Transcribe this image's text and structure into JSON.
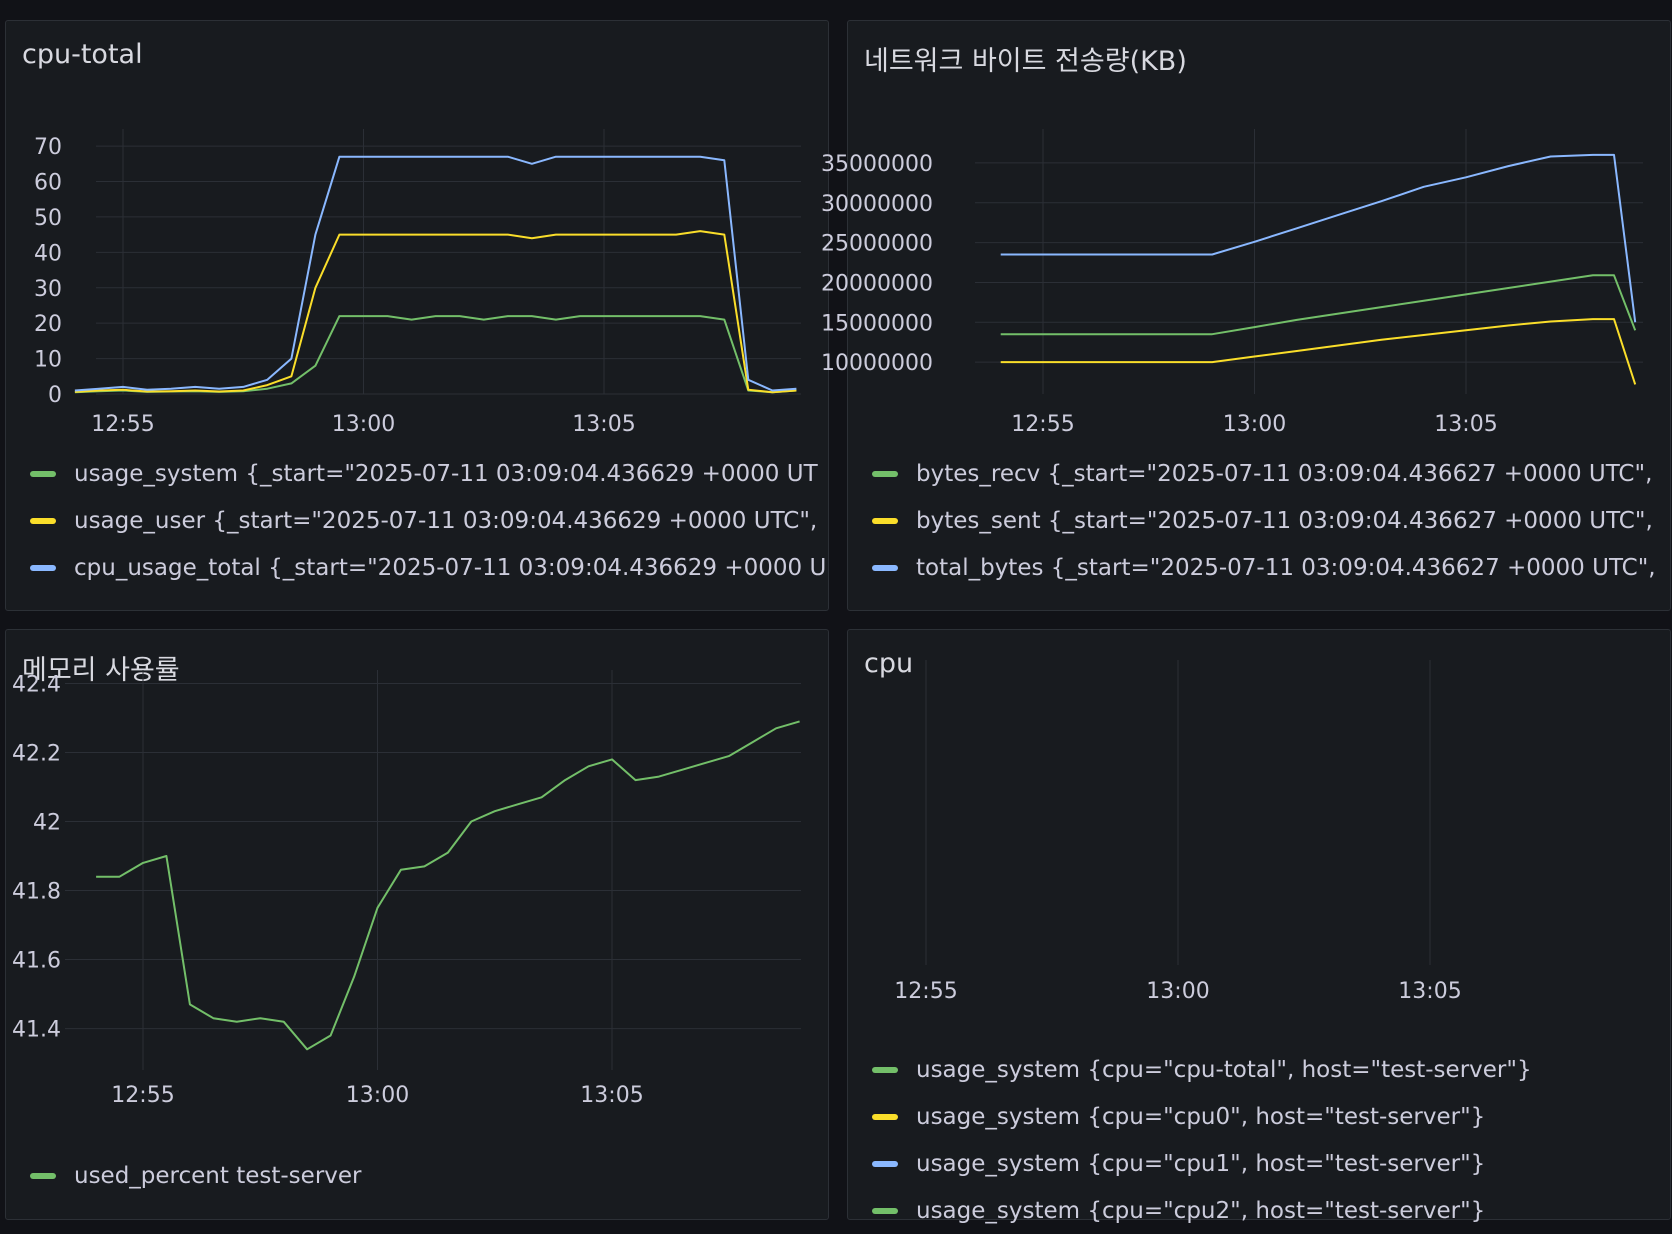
{
  "colors": {
    "green": "#73bf69",
    "yellow": "#fade2a",
    "blue": "#8ab8ff",
    "grid": "#2b2f36",
    "axis_text": "#ccccdc"
  },
  "panels": {
    "cpu_total": {
      "title": "cpu-total",
      "legend": [
        {
          "text": "usage_system {_start=\"2025-07-11 03:09:04.436629 +0000 UT",
          "color": "#73bf69"
        },
        {
          "text": "usage_user {_start=\"2025-07-11 03:09:04.436629 +0000 UTC\",",
          "color": "#fade2a"
        },
        {
          "text": "cpu_usage_total {_start=\"2025-07-11 03:09:04.436629 +0000 U",
          "color": "#8ab8ff"
        }
      ]
    },
    "network": {
      "title": "네트워크 바이트 전송량(KB)",
      "legend": [
        {
          "text": "bytes_recv {_start=\"2025-07-11 03:09:04.436627 +0000 UTC\",",
          "color": "#73bf69"
        },
        {
          "text": "bytes_sent {_start=\"2025-07-11 03:09:04.436627 +0000 UTC\",",
          "color": "#fade2a"
        },
        {
          "text": "total_bytes {_start=\"2025-07-11 03:09:04.436627 +0000 UTC\",",
          "color": "#8ab8ff"
        }
      ]
    },
    "memory": {
      "title": "메모리 사용률",
      "legend": [
        {
          "text": "used_percent test-server",
          "color": "#73bf69"
        }
      ]
    },
    "cpu": {
      "title": "cpu",
      "legend": [
        {
          "text": "usage_system {cpu=\"cpu-total\", host=\"test-server\"}",
          "color": "#73bf69"
        },
        {
          "text": "usage_system {cpu=\"cpu0\", host=\"test-server\"}",
          "color": "#fade2a"
        },
        {
          "text": "usage_system {cpu=\"cpu1\", host=\"test-server\"}",
          "color": "#8ab8ff"
        },
        {
          "text": "usage_system {cpu=\"cpu2\", host=\"test-server\"}",
          "color": "#73bf69"
        }
      ]
    }
  },
  "chart_data": [
    {
      "type": "line",
      "title": "cpu-total",
      "xlabel": "",
      "ylabel": "",
      "x_ticks": [
        "12:55",
        "13:00",
        "13:05"
      ],
      "y_ticks": [
        0,
        10,
        20,
        30,
        40,
        50,
        60,
        70
      ],
      "ylim": [
        0,
        72
      ],
      "x": [
        "12:54:00",
        "12:54:30",
        "12:55:00",
        "12:55:30",
        "12:56:00",
        "12:56:30",
        "12:57:00",
        "12:57:30",
        "12:58:00",
        "12:58:30",
        "12:59:00",
        "12:59:30",
        "13:00:00",
        "13:00:30",
        "13:01:00",
        "13:01:30",
        "13:02:00",
        "13:02:30",
        "13:03:00",
        "13:03:30",
        "13:04:00",
        "13:04:30",
        "13:05:00",
        "13:05:30",
        "13:06:00",
        "13:06:30",
        "13:07:00",
        "13:07:30",
        "13:08:00",
        "13:08:30",
        "13:09:00"
      ],
      "series": [
        {
          "name": "usage_system {_start=\"2025-07-11 03:09:04.436629 +0000 UT",
          "color": "#73bf69",
          "values": [
            0.5,
            0.8,
            1,
            0.6,
            0.7,
            0.8,
            0.6,
            0.8,
            1.5,
            3,
            8,
            22,
            22,
            22,
            21,
            22,
            22,
            21,
            22,
            22,
            21,
            22,
            22,
            22,
            22,
            22,
            22,
            21,
            1,
            0.5,
            1
          ]
        },
        {
          "name": "usage_user {_start=\"2025-07-11 03:09:04.436629 +0000 UTC\",",
          "color": "#fade2a",
          "values": [
            0.6,
            1,
            1.2,
            0.7,
            0.8,
            1,
            0.7,
            1,
            2.5,
            5,
            30,
            45,
            45,
            45,
            45,
            45,
            45,
            45,
            45,
            44,
            45,
            45,
            45,
            45,
            45,
            45,
            46,
            45,
            1.2,
            0.5,
            1
          ]
        },
        {
          "name": "cpu_usage_total {_start=\"2025-07-11 03:09:04.436629 +0000 U",
          "color": "#8ab8ff",
          "values": [
            1,
            1.5,
            2,
            1.2,
            1.5,
            2,
            1.5,
            2,
            4,
            10,
            45,
            67,
            67,
            67,
            67,
            67,
            67,
            67,
            67,
            65,
            67,
            67,
            67,
            67,
            67,
            67,
            67,
            66,
            4,
            1,
            1.5
          ]
        }
      ]
    },
    {
      "type": "line",
      "title": "네트워크 바이트 전송량(KB)",
      "xlabel": "",
      "ylabel": "",
      "x_ticks": [
        "12:55",
        "13:00",
        "13:05"
      ],
      "y_ticks": [
        10000000,
        15000000,
        20000000,
        25000000,
        30000000,
        35000000
      ],
      "ylim": [
        6000000,
        38000000
      ],
      "x": [
        "12:54:00",
        "12:55:00",
        "12:56:00",
        "12:57:00",
        "12:58:00",
        "12:59:00",
        "13:00:00",
        "13:01:00",
        "13:02:00",
        "13:03:00",
        "13:04:00",
        "13:05:00",
        "13:06:00",
        "13:07:00",
        "13:08:00",
        "13:08:30",
        "13:09:00"
      ],
      "series": [
        {
          "name": "bytes_recv {_start=\"2025-07-11 03:09:04.436627 +0000 UTC\",",
          "color": "#73bf69",
          "values": [
            13500000,
            13500000,
            13500000,
            13500000,
            13500000,
            13500000,
            14400000,
            15300000,
            16100000,
            16900000,
            17700000,
            18500000,
            19300000,
            20100000,
            20900000,
            20900000,
            14000000
          ]
        },
        {
          "name": "bytes_sent {_start=\"2025-07-11 03:09:04.436627 +0000 UTC\",",
          "color": "#fade2a",
          "values": [
            10000000,
            10000000,
            10000000,
            10000000,
            10000000,
            10000000,
            10700000,
            11400000,
            12100000,
            12800000,
            13400000,
            14000000,
            14600000,
            15100000,
            15400000,
            15400000,
            7200000
          ]
        },
        {
          "name": "total_bytes {_start=\"2025-07-11 03:09:04.436627 +0000 UTC\",",
          "color": "#8ab8ff",
          "values": [
            23500000,
            23500000,
            23500000,
            23500000,
            23500000,
            23500000,
            25100000,
            26800000,
            28500000,
            30200000,
            32000000,
            33200000,
            34600000,
            35800000,
            36000000,
            36000000,
            15000000
          ]
        }
      ]
    },
    {
      "type": "line",
      "title": "메모리 사용률",
      "xlabel": "",
      "ylabel": "",
      "x_ticks": [
        "12:55",
        "13:00",
        "13:05"
      ],
      "y_ticks": [
        41.4,
        41.6,
        41.8,
        42,
        42.2,
        42.4
      ],
      "y_tick_labels": [
        "41.4",
        "41.6",
        "41.8",
        "42",
        "42.2",
        "42.4"
      ],
      "ylim": [
        41.28,
        42.41
      ],
      "x": [
        "12:54:00",
        "12:54:30",
        "12:55:00",
        "12:55:30",
        "12:56:00",
        "12:56:30",
        "12:57:00",
        "12:57:30",
        "12:58:00",
        "12:58:30",
        "12:59:00",
        "12:59:30",
        "13:00:00",
        "13:00:30",
        "13:01:00",
        "13:01:30",
        "13:02:00",
        "13:02:30",
        "13:03:00",
        "13:03:30",
        "13:04:00",
        "13:04:30",
        "13:05:00",
        "13:05:30",
        "13:06:00",
        "13:06:30",
        "13:07:00",
        "13:07:30",
        "13:08:00",
        "13:08:30",
        "13:09:00"
      ],
      "series": [
        {
          "name": "used_percent test-server",
          "color": "#73bf69",
          "values": [
            41.84,
            41.84,
            41.88,
            41.9,
            41.47,
            41.43,
            41.42,
            41.43,
            41.42,
            41.34,
            41.38,
            41.55,
            41.75,
            41.86,
            41.87,
            41.91,
            42.0,
            42.03,
            42.05,
            42.07,
            42.12,
            42.16,
            42.18,
            42.12,
            42.13,
            42.15,
            42.17,
            42.19,
            42.23,
            42.27,
            42.29
          ]
        }
      ]
    },
    {
      "type": "line",
      "title": "cpu",
      "xlabel": "",
      "ylabel": "",
      "x_ticks": [
        "12:55",
        "13:00",
        "13:05"
      ],
      "series": [
        {
          "name": "usage_system {cpu=\"cpu-total\", host=\"test-server\"}",
          "color": "#73bf69",
          "values": []
        },
        {
          "name": "usage_system {cpu=\"cpu0\", host=\"test-server\"}",
          "color": "#fade2a",
          "values": []
        },
        {
          "name": "usage_system {cpu=\"cpu1\", host=\"test-server\"}",
          "color": "#8ab8ff",
          "values": []
        },
        {
          "name": "usage_system {cpu=\"cpu2\", host=\"test-server\"}",
          "color": "#73bf69",
          "values": []
        }
      ]
    }
  ]
}
